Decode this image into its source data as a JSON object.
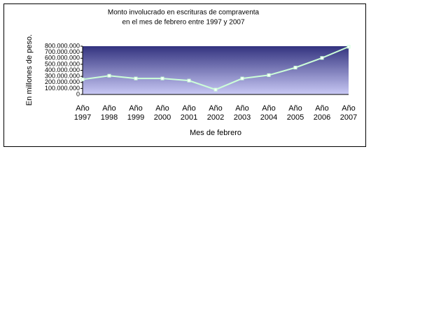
{
  "chart_data": {
    "type": "line",
    "title_lines": [
      "Monto involucrado en escrituras de compraventa",
      "en el mes de febrero entre 1997 y 2007"
    ],
    "x_label": "Mes de febrero",
    "y_label": "En millones de peso.",
    "categories": [
      "Año 1997",
      "Año 1998",
      "Año 1999",
      "Año 2000",
      "Año 2001",
      "Año 2002",
      "Año 2003",
      "Año 2004",
      "Año 2005",
      "Año 2006",
      "Año 2007"
    ],
    "series": [
      {
        "color": "#ccffd8",
        "values": [
          250000000,
          310000000,
          265000000,
          265000000,
          230000000,
          80000000,
          265000000,
          320000000,
          445000000,
          605000000,
          790000000
        ]
      }
    ],
    "ylim": [
      0,
      800000000
    ],
    "yticks": [
      0,
      {
        "value": 100000000,
        "label": "100.000.000"
      },
      {
        "value": 200000000,
        "label": "200.000.000"
      },
      {
        "value": 300000000,
        "label": "300.000.000"
      },
      {
        "value": 400000000,
        "label": "400.000.000"
      },
      {
        "value": 500000000,
        "label": "500.000.000"
      },
      {
        "value": 600000000,
        "label": "600.000.000"
      },
      {
        "value": 700000000,
        "label": "700.000.000"
      },
      {
        "value": 800000000,
        "label": "800.000.000"
      }
    ]
  }
}
